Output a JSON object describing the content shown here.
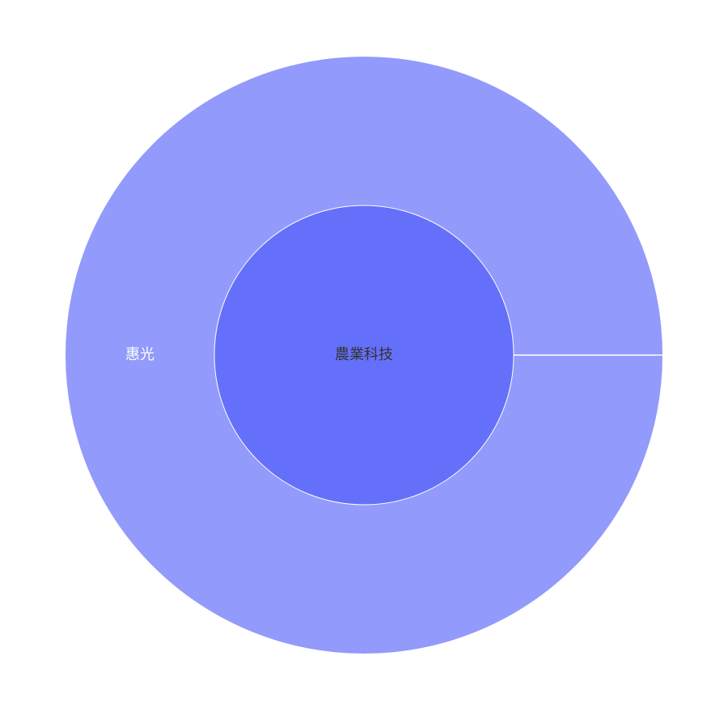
{
  "chart_data": {
    "type": "sunburst",
    "title": "",
    "root": {
      "label": "農業科技",
      "color": "#6570fa",
      "children": [
        {
          "label": "惠光",
          "value": 1,
          "color": "#929afb"
        }
      ]
    }
  }
}
